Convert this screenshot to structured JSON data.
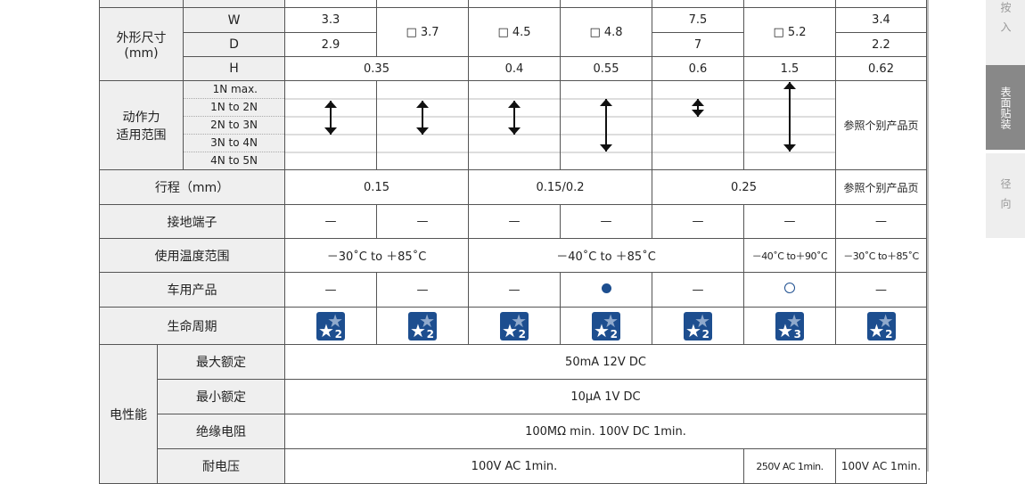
{
  "size": {
    "label": "外形尺寸\n(mm)",
    "W": "W",
    "D": "D",
    "H": "H",
    "W_vals": [
      "3.3",
      "□ 3.7",
      "□ 4.5",
      "□ 4.8",
      "7.5",
      "□ 5.2",
      "3.4"
    ],
    "D_vals": [
      "2.9",
      "7",
      "2.2"
    ],
    "H_vals": [
      "0.35",
      "0.4",
      "0.55",
      "0.6",
      "1.5",
      "0.62"
    ]
  },
  "force": {
    "label": "动作力\n适用范围",
    "levels": [
      "1N max.",
      "1N to 2N",
      "2N to 3N",
      "3N to 4N",
      "4N to 5N"
    ],
    "ranges": [
      [
        "1N to 2N",
        "2N to 3N"
      ],
      [
        "1N to 2N",
        "2N to 3N"
      ],
      [
        "1N to 2N",
        "2N to 3N"
      ],
      [
        "1N to 2N",
        "3N to 4N"
      ],
      [
        "1N to 2N",
        "1N to 2N"
      ],
      [
        "1N max.",
        "3N to 4N"
      ]
    ],
    "other": "参照个别产品页"
  },
  "stroke": {
    "label": "行程（mm）",
    "vals": [
      "0.15",
      "0.15/0.2",
      "0.25",
      "参照个别产品页"
    ]
  },
  "ground": {
    "label": "接地端子",
    "vals": [
      "—",
      "—",
      "—",
      "—",
      "—",
      "—",
      "—"
    ]
  },
  "temp": {
    "label": "使用温度范围",
    "vals": [
      "－30˚C to ＋85˚C",
      "－40˚C to ＋85˚C",
      "－40˚C to＋90˚C",
      "－30˚C to＋85˚C"
    ]
  },
  "auto": {
    "label": "车用产品",
    "vals": [
      "—",
      "—",
      "—",
      "filled-circle",
      "—",
      "open-circle",
      "—"
    ]
  },
  "life": {
    "label": "生命周期",
    "vals": [
      "2",
      "2",
      "2",
      "2",
      "2",
      "3",
      "2"
    ],
    "color": "#1d4e8f"
  },
  "elec": {
    "label": "电性能",
    "max_label": "最大额定",
    "max": "50mA 12V DC",
    "min_label": "最小额定",
    "min": "10μA 1V DC",
    "ins_label": "绝缘电阻",
    "ins": "100MΩ min. 100V DC 1min.",
    "volt_label": "耐电压",
    "volt": [
      "100V AC 1min.",
      "250V AC 1min.",
      "100V AC 1min."
    ]
  },
  "sidebar": {
    "tabs": [
      "按入",
      "表面贴装",
      "径向"
    ],
    "active": 1
  }
}
